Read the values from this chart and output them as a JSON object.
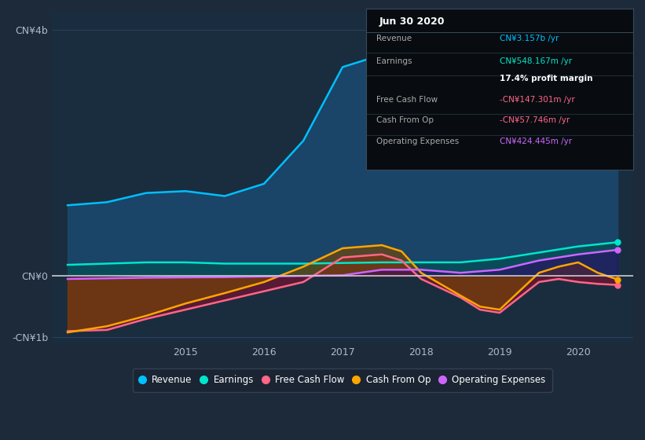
{
  "background_color": "#1c2a3a",
  "chart_bg": "#1a2d3e",
  "zero_line_color": "#cccccc",
  "ylim": [
    -1100000000.0,
    4300000000.0
  ],
  "ytick_pos": [
    -1000000000.0,
    0,
    4000000000.0
  ],
  "ytick_labels": [
    "-CN¥1b",
    "CN¥0",
    "CN¥4b"
  ],
  "xticks": [
    2015,
    2016,
    2017,
    2018,
    2019,
    2020
  ],
  "xlim": [
    2013.3,
    2020.7
  ],
  "series_order": [
    "Revenue",
    "Earnings",
    "Free Cash Flow",
    "Cash From Op",
    "Operating Expenses"
  ],
  "series": {
    "Revenue": {
      "color": "#00bfff",
      "fill_color": "#1a4a70",
      "fill_alpha": 0.85,
      "values": [
        [
          2013.5,
          1150000000.0
        ],
        [
          2014.0,
          1200000000.0
        ],
        [
          2014.5,
          1350000000.0
        ],
        [
          2015.0,
          1380000000.0
        ],
        [
          2015.5,
          1300000000.0
        ],
        [
          2016.0,
          1500000000.0
        ],
        [
          2016.5,
          2200000000.0
        ],
        [
          2017.0,
          3400000000.0
        ],
        [
          2017.5,
          3600000000.0
        ],
        [
          2017.75,
          3550000000.0
        ],
        [
          2018.0,
          2800000000.0
        ],
        [
          2018.5,
          2600000000.0
        ],
        [
          2018.75,
          2550000000.0
        ],
        [
          2019.0,
          2800000000.0
        ],
        [
          2019.25,
          3200000000.0
        ],
        [
          2019.5,
          3600000000.0
        ],
        [
          2019.75,
          3800000000.0
        ],
        [
          2020.0,
          3700000000.0
        ],
        [
          2020.25,
          3600000000.0
        ],
        [
          2020.5,
          3157000000.0
        ]
      ]
    },
    "Earnings": {
      "color": "#00e5cc",
      "fill_color": "#005050",
      "fill_alpha": 0.6,
      "values": [
        [
          2013.5,
          180000000.0
        ],
        [
          2014.0,
          200000000.0
        ],
        [
          2014.5,
          220000000.0
        ],
        [
          2015.0,
          220000000.0
        ],
        [
          2015.5,
          200000000.0
        ],
        [
          2016.0,
          200000000.0
        ],
        [
          2016.5,
          200000000.0
        ],
        [
          2017.0,
          210000000.0
        ],
        [
          2017.5,
          220000000.0
        ],
        [
          2018.0,
          220000000.0
        ],
        [
          2018.5,
          220000000.0
        ],
        [
          2019.0,
          280000000.0
        ],
        [
          2019.5,
          380000000.0
        ],
        [
          2020.0,
          480000000.0
        ],
        [
          2020.5,
          548000000.0
        ]
      ]
    },
    "Free Cash Flow": {
      "color": "#ff6688",
      "fill_color": "#7a1030",
      "fill_alpha": 0.65,
      "values": [
        [
          2013.5,
          -900000000.0
        ],
        [
          2014.0,
          -880000000.0
        ],
        [
          2014.5,
          -700000000.0
        ],
        [
          2015.0,
          -550000000.0
        ],
        [
          2015.5,
          -400000000.0
        ],
        [
          2016.0,
          -250000000.0
        ],
        [
          2016.5,
          -100000000.0
        ],
        [
          2017.0,
          300000000.0
        ],
        [
          2017.5,
          350000000.0
        ],
        [
          2017.75,
          250000000.0
        ],
        [
          2018.0,
          -50000000.0
        ],
        [
          2018.5,
          -350000000.0
        ],
        [
          2018.75,
          -550000000.0
        ],
        [
          2019.0,
          -600000000.0
        ],
        [
          2019.25,
          -350000000.0
        ],
        [
          2019.5,
          -100000000.0
        ],
        [
          2019.75,
          -50000000.0
        ],
        [
          2020.0,
          -100000000.0
        ],
        [
          2020.25,
          -130000000.0
        ],
        [
          2020.5,
          -147000000.0
        ]
      ]
    },
    "Cash From Op": {
      "color": "#ffa500",
      "fill_color": "#7a4800",
      "fill_alpha": 0.6,
      "values": [
        [
          2013.5,
          -920000000.0
        ],
        [
          2014.0,
          -820000000.0
        ],
        [
          2014.5,
          -650000000.0
        ],
        [
          2015.0,
          -450000000.0
        ],
        [
          2015.5,
          -280000000.0
        ],
        [
          2016.0,
          -100000000.0
        ],
        [
          2016.5,
          150000000.0
        ],
        [
          2017.0,
          450000000.0
        ],
        [
          2017.5,
          500000000.0
        ],
        [
          2017.75,
          400000000.0
        ],
        [
          2018.0,
          50000000.0
        ],
        [
          2018.5,
          -320000000.0
        ],
        [
          2018.75,
          -500000000.0
        ],
        [
          2019.0,
          -550000000.0
        ],
        [
          2019.25,
          -250000000.0
        ],
        [
          2019.5,
          50000000.0
        ],
        [
          2019.75,
          150000000.0
        ],
        [
          2020.0,
          220000000.0
        ],
        [
          2020.25,
          50000000.0
        ],
        [
          2020.5,
          -58000000.0
        ]
      ]
    },
    "Operating Expenses": {
      "color": "#cc66ff",
      "fill_color": "#330066",
      "fill_alpha": 0.5,
      "values": [
        [
          2013.5,
          -50000000.0
        ],
        [
          2014.0,
          -40000000.0
        ],
        [
          2014.5,
          -30000000.0
        ],
        [
          2015.5,
          -20000000.0
        ],
        [
          2016.0,
          -10000000.0
        ],
        [
          2016.5,
          0.0
        ],
        [
          2017.0,
          10000000.0
        ],
        [
          2017.5,
          100000000.0
        ],
        [
          2018.0,
          100000000.0
        ],
        [
          2018.5,
          50000000.0
        ],
        [
          2019.0,
          100000000.0
        ],
        [
          2019.5,
          250000000.0
        ],
        [
          2020.0,
          350000000.0
        ],
        [
          2020.5,
          424000000.0
        ]
      ]
    }
  },
  "tooltip": {
    "title": "Jun 30 2020",
    "rows": [
      {
        "label": "Revenue",
        "value": "CN¥3.157b /yr",
        "value_color": "#00bfff",
        "bold_value": false
      },
      {
        "label": "Earnings",
        "value": "CN¥548.167m /yr",
        "value_color": "#00e5cc",
        "bold_value": false
      },
      {
        "label": "",
        "value": "17.4% profit margin",
        "value_color": "#ffffff",
        "bold_value": true
      },
      {
        "label": "Free Cash Flow",
        "value": "-CN¥147.301m /yr",
        "value_color": "#ff6688",
        "bold_value": false
      },
      {
        "label": "Cash From Op",
        "value": "-CN¥57.746m /yr",
        "value_color": "#ff6688",
        "bold_value": false
      },
      {
        "label": "Operating Expenses",
        "value": "CN¥424.445m /yr",
        "value_color": "#cc66ff",
        "bold_value": false
      }
    ]
  },
  "legend_items": [
    {
      "label": "Revenue",
      "color": "#00bfff"
    },
    {
      "label": "Earnings",
      "color": "#00e5cc"
    },
    {
      "label": "Free Cash Flow",
      "color": "#ff6688"
    },
    {
      "label": "Cash From Op",
      "color": "#ffa500"
    },
    {
      "label": "Operating Expenses",
      "color": "#cc66ff"
    }
  ]
}
